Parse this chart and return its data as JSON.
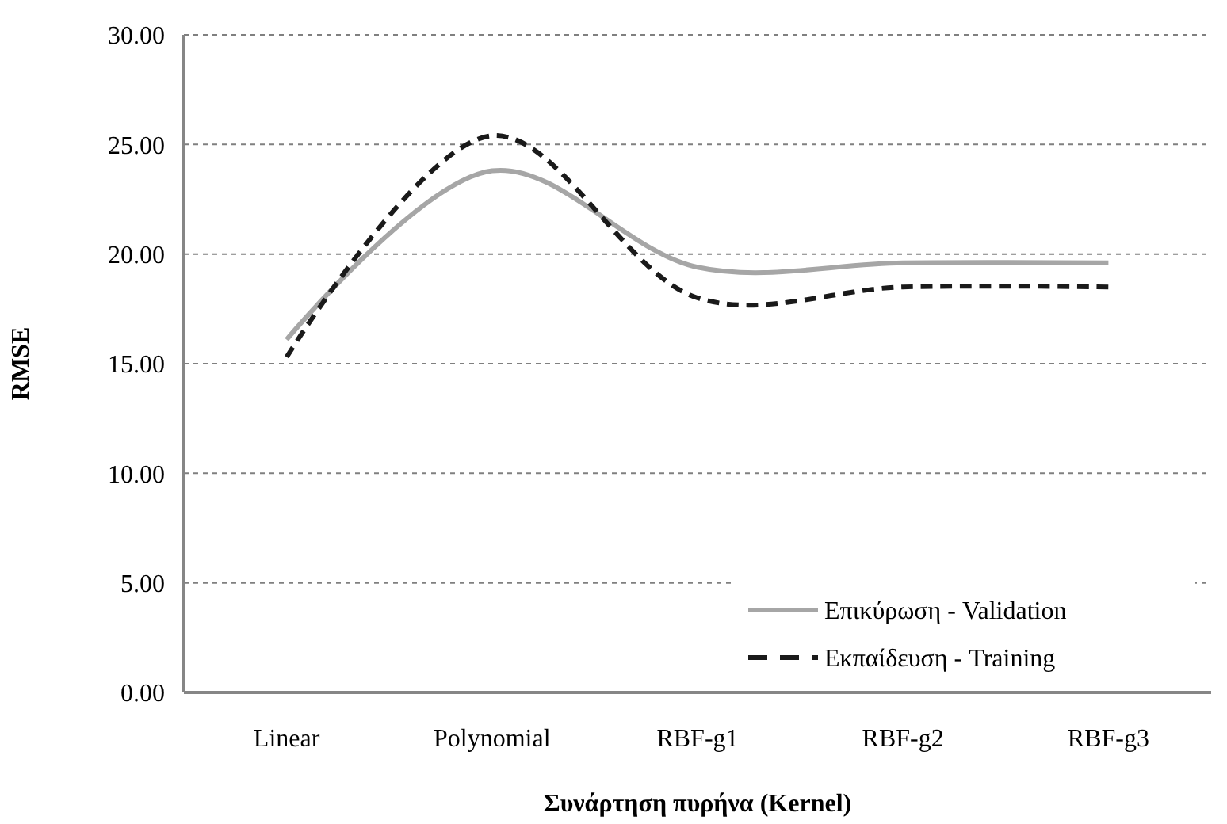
{
  "chart_data": {
    "type": "line",
    "xlabel": "Συνάρτηση πυρήνα (Kernel)",
    "ylabel": "RMSE",
    "categories": [
      "Linear",
      "Polynomial",
      "RBF-g1",
      "RBF-g2",
      "RBF-g3"
    ],
    "series": [
      {
        "name": "Επικύρωση - Validation",
        "color": "#a6a6a6",
        "line_style": "solid",
        "values": [
          16.1,
          23.8,
          19.4,
          19.6,
          19.6
        ]
      },
      {
        "name": "Εκπαίδευση - Training",
        "color": "#1a1a1a",
        "line_style": "dashed",
        "values": [
          15.3,
          25.4,
          18.0,
          18.5,
          18.5
        ]
      }
    ],
    "ylim": [
      0,
      30
    ],
    "yticks": [
      {
        "value": 0,
        "label": "0.00"
      },
      {
        "value": 5,
        "label": "5.00"
      },
      {
        "value": 10,
        "label": "10.00"
      },
      {
        "value": 15,
        "label": "15.00"
      },
      {
        "value": 20,
        "label": "20.00"
      },
      {
        "value": 25,
        "label": "25.00"
      },
      {
        "value": 30,
        "label": "30.00"
      }
    ],
    "grid": "y",
    "legend": "bottom right"
  }
}
